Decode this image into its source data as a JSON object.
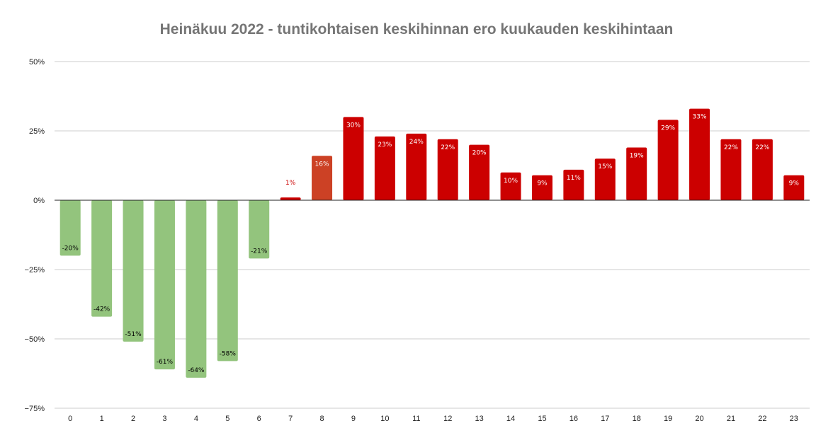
{
  "chart_data": {
    "type": "bar",
    "title": "Heinäkuu 2022 - tuntikohtaisen keskihinnan ero kuukauden keskihintaan",
    "xlabel": "",
    "ylabel": "",
    "ylim": [
      -75,
      50
    ],
    "yticks": [
      50,
      25,
      0,
      -25,
      -50,
      -75
    ],
    "ytick_labels": [
      "50%",
      "25%",
      "0%",
      "−25%",
      "−50%",
      "−75%"
    ],
    "grid": true,
    "categories": [
      "0",
      "1",
      "2",
      "3",
      "4",
      "5",
      "6",
      "7",
      "8",
      "9",
      "10",
      "11",
      "12",
      "13",
      "14",
      "15",
      "16",
      "17",
      "18",
      "19",
      "20",
      "21",
      "22",
      "23"
    ],
    "values": [
      -20,
      -42,
      -51,
      -61,
      -64,
      -58,
      -21,
      1,
      16,
      30,
      23,
      24,
      22,
      20,
      10,
      9,
      11,
      15,
      19,
      29,
      33,
      22,
      22,
      9
    ],
    "labels": [
      "-20%",
      "-42%",
      "-51%",
      "-61%",
      "-64%",
      "-58%",
      "-21%",
      "1%",
      "16%",
      "30%",
      "23%",
      "24%",
      "22%",
      "20%",
      "10%",
      "9%",
      "11%",
      "15%",
      "19%",
      "29%",
      "33%",
      "22%",
      "22%",
      "9%"
    ],
    "colors": {
      "negative": "#93c47d",
      "hour_8": "#cc4125",
      "positive": "#cc0000",
      "label_dark": "#000000",
      "label_light": "#ffffff",
      "label_outside": "#cc0000",
      "title_color": "#757575",
      "grid_color": "#cccccc",
      "axis_color": "#222222"
    }
  }
}
